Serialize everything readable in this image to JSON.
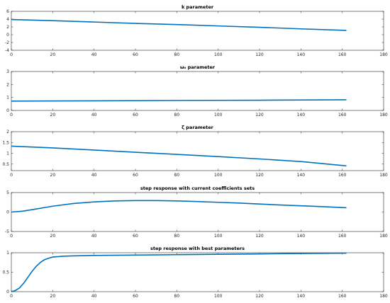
{
  "colors": {
    "line": "#0072BD",
    "axis": "#262626"
  },
  "chart_data": [
    {
      "type": "line",
      "title": "k parameter",
      "xlim": [
        0,
        180
      ],
      "ylim": [
        -4,
        6
      ],
      "xticks": [
        0,
        20,
        40,
        60,
        80,
        100,
        120,
        140,
        160,
        180
      ],
      "yticks": [
        -4,
        -2,
        0,
        2,
        4,
        6
      ],
      "series": [
        {
          "x": [
            0,
            20,
            40,
            60,
            80,
            100,
            120,
            140,
            162
          ],
          "y": [
            3.9,
            3.6,
            3.25,
            2.9,
            2.6,
            2.25,
            1.9,
            1.5,
            1.1
          ]
        }
      ]
    },
    {
      "type": "line",
      "title": "ω₀ parameter",
      "xlim": [
        0,
        180
      ],
      "ylim": [
        0,
        3
      ],
      "xticks": [
        0,
        20,
        40,
        60,
        80,
        100,
        120,
        140,
        160,
        180
      ],
      "yticks": [
        0,
        1,
        2,
        3
      ],
      "series": [
        {
          "x": [
            0,
            40,
            80,
            120,
            162
          ],
          "y": [
            0.72,
            0.74,
            0.77,
            0.79,
            0.82
          ]
        }
      ]
    },
    {
      "type": "line",
      "title": "ζ parameter",
      "xlim": [
        0,
        180
      ],
      "ylim": [
        0.2,
        2
      ],
      "xticks": [
        0,
        20,
        40,
        60,
        80,
        100,
        120,
        140,
        160,
        180
      ],
      "yticks": [
        0.5,
        1,
        1.5,
        2
      ],
      "series": [
        {
          "x": [
            0,
            20,
            40,
            60,
            80,
            100,
            120,
            140,
            162
          ],
          "y": [
            1.33,
            1.25,
            1.15,
            1.05,
            0.95,
            0.85,
            0.74,
            0.62,
            0.42
          ]
        }
      ]
    },
    {
      "type": "line",
      "title": "step response with current coefficients sets",
      "xlim": [
        0,
        180
      ],
      "ylim": [
        -5,
        5
      ],
      "xticks": [
        0,
        20,
        40,
        60,
        80,
        100,
        120,
        140,
        160,
        180
      ],
      "yticks": [
        -5,
        0,
        5
      ],
      "series": [
        {
          "x": [
            0,
            5,
            10,
            20,
            30,
            40,
            50,
            60,
            70,
            80,
            90,
            100,
            110,
            120,
            130,
            140,
            150,
            162
          ],
          "y": [
            0,
            0.2,
            0.6,
            1.5,
            2.2,
            2.6,
            2.85,
            2.95,
            2.95,
            2.85,
            2.7,
            2.5,
            2.3,
            2.05,
            1.8,
            1.6,
            1.4,
            1.1
          ]
        }
      ]
    },
    {
      "type": "line",
      "title": "step response with best parameters",
      "xlim": [
        0,
        180
      ],
      "ylim": [
        0,
        1
      ],
      "xticks": [
        0,
        20,
        40,
        60,
        80,
        100,
        120,
        140,
        160,
        180
      ],
      "yticks": [
        0,
        0.5,
        1
      ],
      "series": [
        {
          "x": [
            0,
            2,
            4,
            6,
            8,
            10,
            12,
            14,
            16,
            18,
            20,
            25,
            30,
            40,
            60,
            80,
            100,
            120,
            140,
            162
          ],
          "y": [
            0,
            0.03,
            0.1,
            0.22,
            0.37,
            0.52,
            0.65,
            0.75,
            0.82,
            0.86,
            0.89,
            0.91,
            0.92,
            0.93,
            0.94,
            0.95,
            0.96,
            0.97,
            0.98,
            0.99
          ]
        }
      ]
    }
  ]
}
